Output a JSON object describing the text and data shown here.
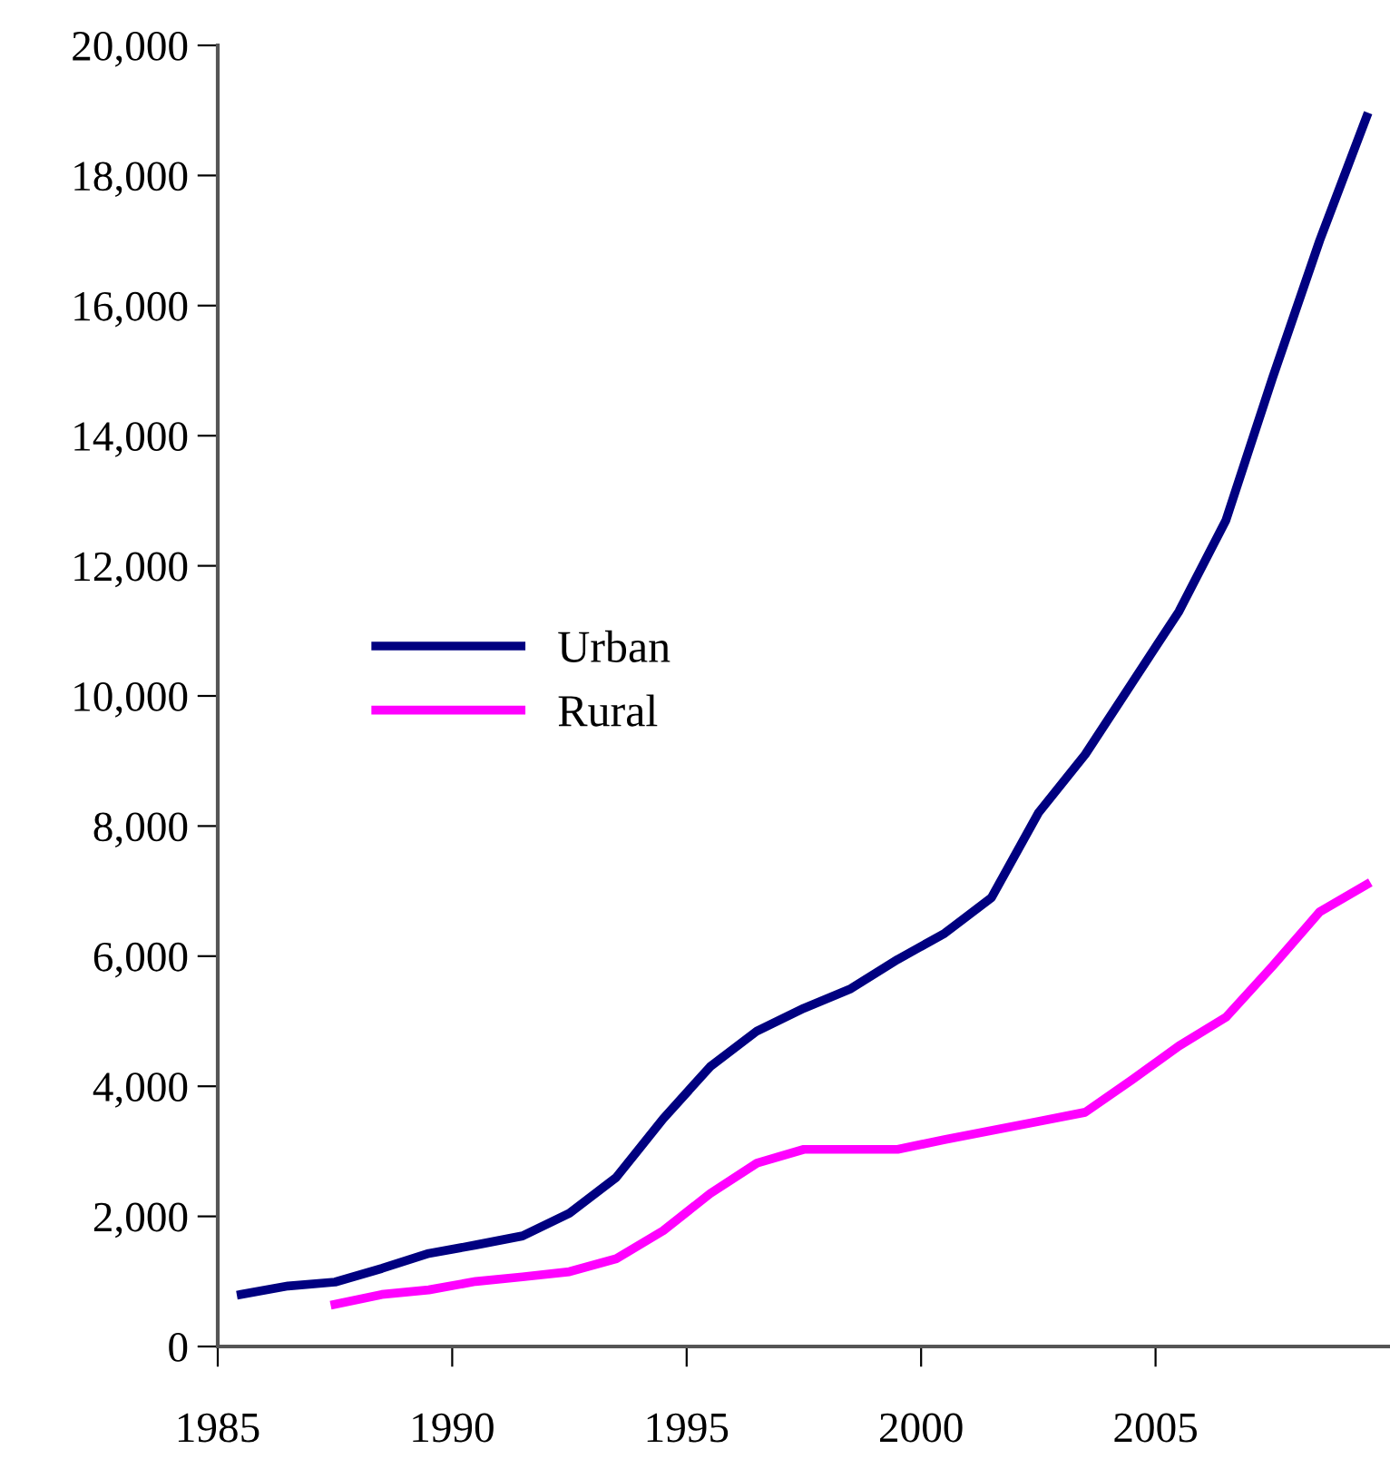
{
  "chart_data": {
    "type": "line",
    "xlim": [
      1985,
      2010
    ],
    "xticks": [
      1985,
      1990,
      1995,
      2000,
      2005
    ],
    "ylim": [
      0,
      20000
    ],
    "yticks": [
      {
        "value": 0,
        "label": "0"
      },
      {
        "value": 2000,
        "label": "2,000"
      },
      {
        "value": 4000,
        "label": "4,000"
      },
      {
        "value": 6000,
        "label": "6,000"
      },
      {
        "value": 8000,
        "label": "8,000"
      },
      {
        "value": 10000,
        "label": "10,000"
      },
      {
        "value": 12000,
        "label": "12,000"
      },
      {
        "value": 14000,
        "label": "14,000"
      },
      {
        "value": 16000,
        "label": "16,000"
      },
      {
        "value": 18000,
        "label": "18,000"
      },
      {
        "value": 20000,
        "label": "20,000"
      }
    ],
    "legend": "center left",
    "grid": false,
    "marker": "none",
    "line_style": "solid",
    "series": [
      {
        "name": "Urban",
        "color": "#000080",
        "x": [
          1985.5,
          1986.5,
          1987.5,
          1988.5,
          1989.5,
          1990.5,
          1991.5,
          1992.5,
          1993.5,
          1994.5,
          1995.5,
          1996.5,
          1997.5,
          1998.5,
          1999.5,
          2000.5,
          2001.5,
          2002.5,
          2003.5,
          2004.5,
          2005.5,
          2006.5,
          2007.5,
          2008.5,
          2009.5
        ],
        "values": [
          800,
          930,
          990,
          1200,
          1430,
          1560,
          1700,
          2050,
          2600,
          3500,
          4300,
          4850,
          5200,
          5500,
          5950,
          6350,
          6900,
          8200,
          9100,
          10200,
          11300,
          12700,
          14900,
          17000,
          18900
        ]
      },
      {
        "name": "Rural",
        "color": "#ff00ff",
        "x": [
          1987.5,
          1988.5,
          1989.5,
          1990.5,
          1991.5,
          1992.5,
          1993.5,
          1994.5,
          1995.5,
          1996.5,
          1997.5,
          1998.5,
          1999.5,
          2000.5,
          2001.5,
          2002.5,
          2003.5,
          2004.5,
          2005.5,
          2006.5,
          2007.5,
          2008.5,
          2009.5
        ],
        "values": [
          650,
          800,
          870,
          1000,
          1070,
          1150,
          1350,
          1780,
          2350,
          2820,
          3030,
          3030,
          3030,
          3180,
          3320,
          3460,
          3600,
          4100,
          4620,
          5060,
          5850,
          6680,
          7100
        ]
      }
    ]
  }
}
